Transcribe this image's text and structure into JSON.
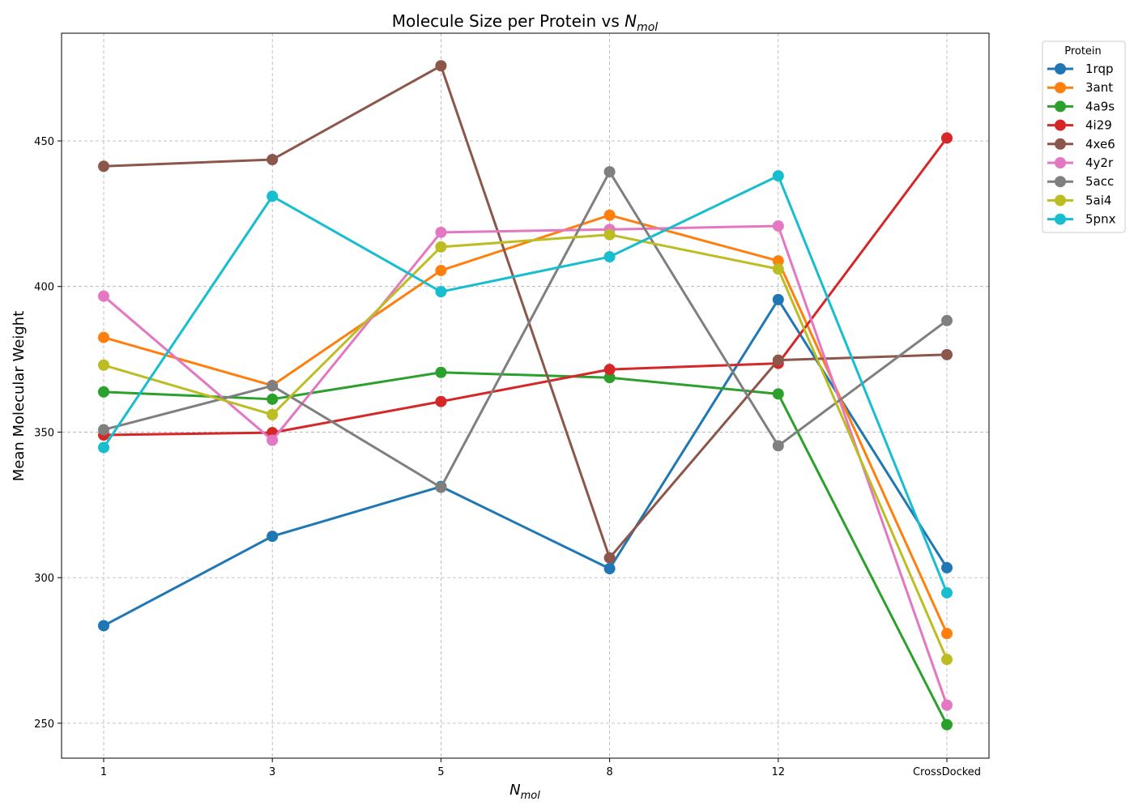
{
  "chart_data": {
    "type": "line",
    "title_main": "Molecule Size per Protein vs ",
    "title_sym_base": "N",
    "title_sym_sub": "mol",
    "xlabel_base": "N",
    "xlabel_sub": "mol",
    "ylabel": "Mean Molecular Weight",
    "categories": [
      "1",
      "3",
      "5",
      "8",
      "12",
      "CrossDocked"
    ],
    "ylim": [
      238,
      487
    ],
    "yticks": [
      250,
      300,
      350,
      400,
      450
    ],
    "grid": true,
    "legend": {
      "title": "Protein",
      "placement": "outside top-right"
    },
    "series": [
      {
        "name": "1rqp",
        "color": "#1f77b4",
        "values": [
          283.5,
          314.2,
          331.3,
          303.1,
          395.5,
          303.4
        ]
      },
      {
        "name": "3ant",
        "color": "#ff7f0e",
        "values": [
          382.5,
          366.0,
          405.5,
          424.5,
          408.8,
          280.8
        ]
      },
      {
        "name": "4a9s",
        "color": "#2ca02c",
        "values": [
          363.8,
          361.3,
          370.5,
          368.7,
          363.1,
          249.5
        ]
      },
      {
        "name": "4i29",
        "color": "#d62728",
        "values": [
          349.0,
          349.8,
          360.5,
          371.5,
          373.6,
          451.0
        ]
      },
      {
        "name": "4xe6",
        "color": "#8c564b",
        "values": [
          441.3,
          443.6,
          475.8,
          306.8,
          374.7,
          376.6
        ]
      },
      {
        "name": "4y2r",
        "color": "#e377c2",
        "values": [
          396.7,
          347.2,
          418.6,
          419.6,
          420.8,
          256.2
        ]
      },
      {
        "name": "5acc",
        "color": "#7f7f7f",
        "values": [
          350.8,
          365.9,
          331.0,
          439.4,
          345.3,
          388.3
        ]
      },
      {
        "name": "5ai4",
        "color": "#bcbd22",
        "values": [
          373.0,
          356.0,
          413.6,
          417.8,
          406.0,
          271.9
        ]
      },
      {
        "name": "5pnx",
        "color": "#17becf",
        "values": [
          344.7,
          431.0,
          398.2,
          410.2,
          438.0,
          294.8
        ]
      }
    ]
  }
}
